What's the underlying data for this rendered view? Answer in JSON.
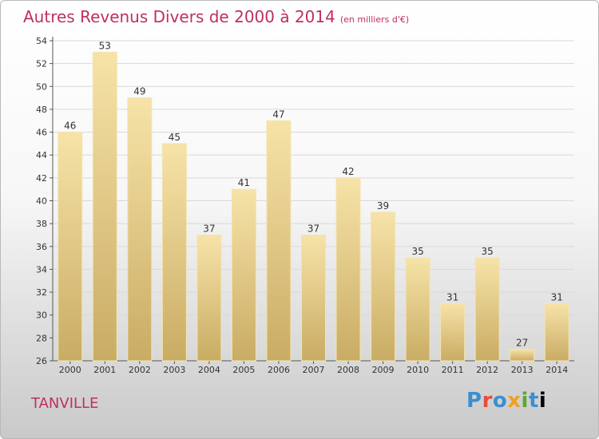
{
  "title": "Autres Revenus Divers de 2000 à 2014",
  "unit_note": "(en milliers d'€)",
  "location": "TANVILLE",
  "logo_text": "Proxiti",
  "colors": {
    "title": "#c0305a",
    "bar_top": "#f7e3a8",
    "bar_bottom": "#c9ac64",
    "grid": "#d9d9d9"
  },
  "chart_data": {
    "type": "bar",
    "categories": [
      "2000",
      "2001",
      "2002",
      "2003",
      "2004",
      "2005",
      "2006",
      "2007",
      "2008",
      "2009",
      "2010",
      "2011",
      "2012",
      "2013",
      "2014"
    ],
    "values": [
      46,
      53,
      49,
      45,
      37,
      41,
      47,
      37,
      42,
      39,
      35,
      31,
      35,
      27,
      31
    ],
    "ylim": [
      26,
      54
    ],
    "yticks": [
      26,
      28,
      30,
      32,
      34,
      36,
      38,
      40,
      42,
      44,
      46,
      48,
      50,
      52,
      54
    ],
    "grid": true,
    "data_labels": true
  }
}
